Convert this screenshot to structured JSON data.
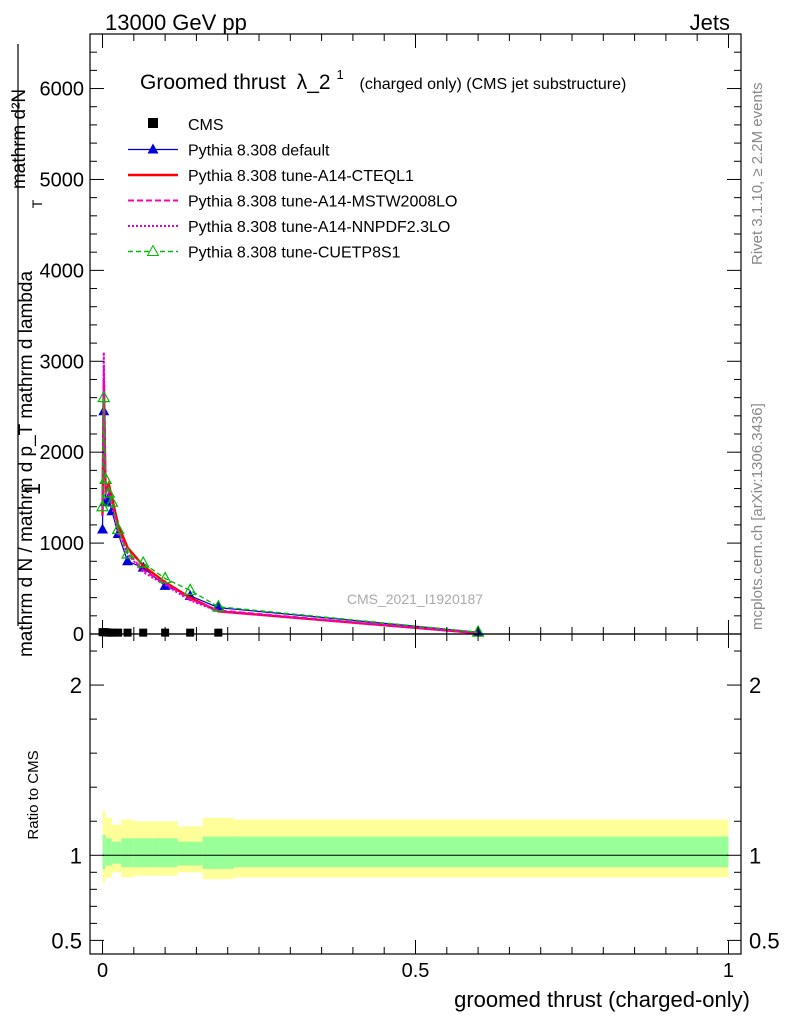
{
  "header": {
    "left_label": "13000 GeV pp",
    "right_label": "Jets"
  },
  "side": {
    "rivet_label": "Rivet 3.1.10, ≥ 2.2M events",
    "mcplots_label": "mcplots.cern.ch [arXiv:1306.3436]"
  },
  "colors": {
    "cms": "#000000",
    "default": "#0000dd",
    "cteql1": "#ff0000",
    "mstw": "#ff00aa",
    "nnpdf": "#dd00dd",
    "cuetp": "#00bb00",
    "band_outer": "#ffff99",
    "band_inner": "#99ff99"
  },
  "chart_data": [
    {
      "type": "line",
      "title_main": "Groomed thrust",
      "title_lambda": "λ_2",
      "title_sup": "1",
      "title_rest": "(charged only) (CMS jet substructure)",
      "ylabel_top": "1",
      "ylabel_bottom": "mathrm d N / mathrm d p_T mathrm d lambda",
      "ylabel_upper": "mathrm d²N",
      "ylabel_sub": "T",
      "ylim": [
        0,
        6600
      ],
      "xlim": [
        -0.02,
        1.02
      ],
      "yticks": [
        {
          "v": 0,
          "label": "0"
        },
        {
          "v": 1000,
          "label": "1000"
        },
        {
          "v": 2000,
          "label": "2000"
        },
        {
          "v": 3000,
          "label": "3000"
        },
        {
          "v": 4000,
          "label": "4000"
        },
        {
          "v": 5000,
          "label": "5000"
        },
        {
          "v": 6000,
          "label": "6000"
        }
      ],
      "watermark": "CMS_2021_I1920187",
      "legend": [
        {
          "key": "cms",
          "label": "CMS"
        },
        {
          "key": "default",
          "label": "Pythia 8.308 default"
        },
        {
          "key": "cteql1",
          "label": "Pythia 8.308 tune-A14-CTEQL1"
        },
        {
          "key": "mstw",
          "label": "Pythia 8.308 tune-A14-MSTW2008LO"
        },
        {
          "key": "nnpdf",
          "label": "Pythia 8.308 tune-A14-NNPDF2.3LO"
        },
        {
          "key": "cuetp",
          "label": "Pythia 8.308 tune-CUETP8S1"
        }
      ],
      "series": [
        {
          "key": "cms",
          "x": [
            0.0,
            0.002,
            0.005,
            0.01,
            0.015,
            0.025,
            0.04,
            0.065,
            0.1,
            0.14,
            0.185
          ],
          "y": [
            20,
            20,
            20,
            15,
            15,
            15,
            15,
            15,
            15,
            15,
            15
          ]
        },
        {
          "key": "default",
          "x": [
            0.0,
            0.002,
            0.005,
            0.01,
            0.015,
            0.025,
            0.04,
            0.065,
            0.1,
            0.14,
            0.185,
            0.6
          ],
          "y": [
            1150,
            2450,
            1450,
            1500,
            1350,
            1100,
            800,
            730,
            530,
            420,
            290,
            20
          ]
        },
        {
          "key": "cteql1",
          "x": [
            0.0,
            0.002,
            0.005,
            0.01,
            0.015,
            0.025,
            0.04,
            0.065,
            0.1,
            0.14,
            0.185,
            0.6
          ],
          "y": [
            1300,
            2800,
            1550,
            1650,
            1500,
            1200,
            950,
            750,
            570,
            400,
            250,
            10
          ]
        },
        {
          "key": "mstw",
          "x": [
            0.0,
            0.002,
            0.005,
            0.01,
            0.015,
            0.025,
            0.04,
            0.065,
            0.1,
            0.14,
            0.185,
            0.6
          ],
          "y": [
            1350,
            2950,
            1600,
            1600,
            1450,
            1150,
            900,
            700,
            560,
            380,
            260,
            10
          ]
        },
        {
          "key": "nnpdf",
          "x": [
            0.0,
            0.002,
            0.005,
            0.01,
            0.015,
            0.025,
            0.04,
            0.065,
            0.1,
            0.14,
            0.185,
            0.6
          ],
          "y": [
            1300,
            3100,
            1500,
            1550,
            1400,
            1100,
            880,
            680,
            540,
            370,
            250,
            10
          ]
        },
        {
          "key": "cuetp",
          "x": [
            0.0,
            0.002,
            0.005,
            0.01,
            0.015,
            0.025,
            0.04,
            0.065,
            0.1,
            0.14,
            0.185,
            0.6
          ],
          "y": [
            1400,
            2600,
            1700,
            1550,
            1450,
            1150,
            880,
            780,
            610,
            480,
            300,
            20
          ]
        }
      ]
    },
    {
      "type": "area",
      "ylabel": "Ratio to CMS",
      "xlabel": "groomed thrust (charged-only)",
      "ylim": [
        0.42,
        2.3
      ],
      "xlim": [
        -0.02,
        1.02
      ],
      "yticks": [
        {
          "v": 0.5,
          "label": "0.5"
        },
        {
          "v": 1,
          "label": "1"
        },
        {
          "v": 2,
          "label": "2"
        }
      ],
      "xticks": [
        {
          "v": 0,
          "label": "0"
        },
        {
          "v": 0.5,
          "label": "0.5"
        },
        {
          "v": 1,
          "label": "1"
        }
      ],
      "bands": {
        "edges": [
          0.0,
          0.005,
          0.015,
          0.03,
          0.05,
          0.08,
          0.12,
          0.16,
          0.21,
          1.0
        ],
        "outer_lo": [
          0.84,
          0.87,
          0.9,
          0.87,
          0.88,
          0.88,
          0.9,
          0.86,
          0.87
        ],
        "outer_hi": [
          1.26,
          1.22,
          1.18,
          1.21,
          1.2,
          1.2,
          1.17,
          1.22,
          1.21
        ],
        "inner_lo": [
          0.92,
          0.94,
          0.95,
          0.93,
          0.93,
          0.93,
          0.94,
          0.92,
          0.93
        ],
        "inner_hi": [
          1.12,
          1.1,
          1.08,
          1.1,
          1.1,
          1.1,
          1.08,
          1.11,
          1.11
        ]
      }
    }
  ]
}
